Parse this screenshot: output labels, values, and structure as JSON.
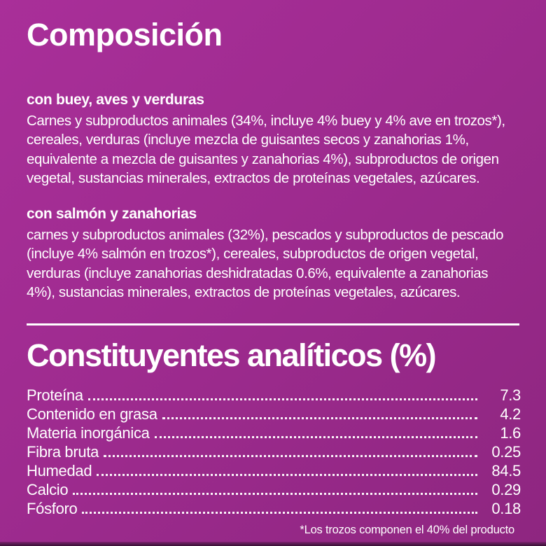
{
  "theme": {
    "background_color": "#9e2b8f",
    "text_color": "#ffffff",
    "divider_color": "#ffffff",
    "bottom_edge_color": "#3a1036"
  },
  "composition": {
    "title": "Composición",
    "sections": [
      {
        "heading": "con buey, aves y verduras",
        "body": "Carnes y subproductos animales (34%, incluye 4% buey y 4% ave en trozos*), cereales, verduras (incluye mezcla de guisantes secos y zanahorias 1%, equivalente a mezcla de guisantes y zanahorias 4%), subproductos de origen vegetal, sustancias minerales, extractos de proteínas vegetales, azúcares."
      },
      {
        "heading": "con salmón y zanahorias",
        "body": "carnes y subproductos animales (32%), pescados y subproductos de pescado (incluye 4% salmón en trozos*), cereales, subproductos de origen vegetal, verduras (incluye zanahorias deshidratadas 0.6%, equivalente a zanahorias 4%), sustancias minerales, extractos de proteínas vegetales, azúcares."
      }
    ]
  },
  "analytics": {
    "title": "Constituyentes analíticos (%)",
    "rows": [
      {
        "label": "Proteína",
        "value": "7.3"
      },
      {
        "label": "Contenido en grasa",
        "value": "4.2"
      },
      {
        "label": "Materia inorgánica",
        "value": "1.6"
      },
      {
        "label": "Fibra bruta",
        "value": "0.25"
      },
      {
        "label": "Humedad",
        "value": "84.5"
      },
      {
        "label": "Calcio",
        "value": "0.29"
      },
      {
        "label": "Fósforo",
        "value": "0.18"
      }
    ],
    "footnote": "*Los trozos componen el 40% del producto"
  }
}
